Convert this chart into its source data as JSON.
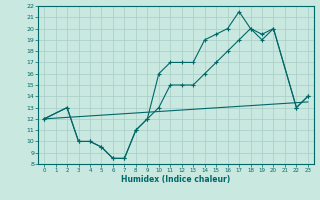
{
  "xlabel": "Humidex (Indice chaleur)",
  "bg_color": "#c8e8e0",
  "grid_color": "#a8ccc8",
  "line_color": "#006868",
  "xlim": [
    -0.5,
    23.5
  ],
  "ylim": [
    8,
    22
  ],
  "xticks": [
    0,
    1,
    2,
    3,
    4,
    5,
    6,
    7,
    8,
    9,
    10,
    11,
    12,
    13,
    14,
    15,
    16,
    17,
    18,
    19,
    20,
    21,
    22,
    23
  ],
  "yticks": [
    8,
    9,
    10,
    11,
    12,
    13,
    14,
    15,
    16,
    17,
    18,
    19,
    20,
    21,
    22
  ],
  "line1_x": [
    0,
    2,
    3,
    4,
    5,
    6,
    7,
    8,
    9,
    10,
    11,
    12,
    13,
    14,
    15,
    16,
    17,
    18,
    19,
    20,
    22,
    23
  ],
  "line1_y": [
    12,
    13,
    10,
    10,
    9.5,
    8.5,
    8.5,
    11,
    12,
    13,
    15,
    15,
    15,
    16,
    17,
    18,
    19,
    20,
    19,
    20,
    13,
    14
  ],
  "line2_x": [
    0,
    2,
    3,
    4,
    5,
    6,
    7,
    8,
    9,
    10,
    11,
    12,
    13,
    14,
    15,
    16,
    17,
    18,
    19,
    20,
    22,
    23
  ],
  "line2_y": [
    12,
    13,
    10,
    10,
    9.5,
    8.5,
    8.5,
    11,
    12,
    16,
    17,
    17,
    17,
    19,
    19.5,
    20,
    21.5,
    20,
    19.5,
    20,
    13,
    14
  ],
  "line3_x": [
    0,
    23
  ],
  "line3_y": [
    12,
    13.5
  ]
}
